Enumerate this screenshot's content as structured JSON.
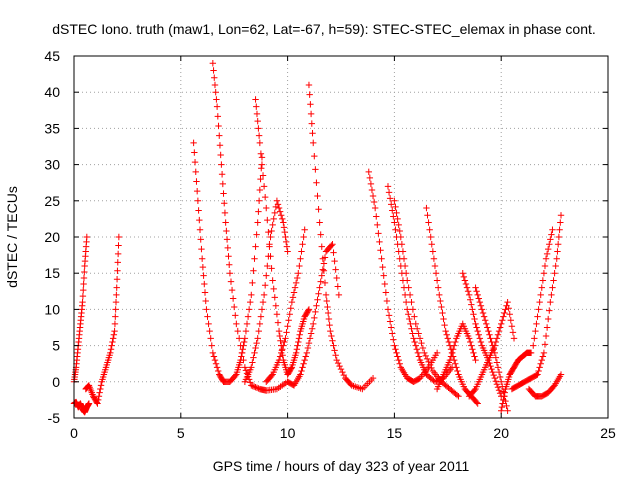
{
  "chart_data": {
    "type": "scatter",
    "title": "dSTEC Iono. truth (maw1, Lon=62, Lat=-67, h=59): STEC-STEC_elemax in phase cont.",
    "xlabel": "GPS time / hours of day 323 of year 2011",
    "ylabel": "dSTEC  / TECUs",
    "xlim": [
      0,
      25
    ],
    "ylim": [
      -5,
      45
    ],
    "xticks": [
      "0",
      "5",
      "10",
      "15",
      "20",
      "25"
    ],
    "yticks": [
      "-5",
      "0",
      "5",
      "10",
      "15",
      "20",
      "25",
      "30",
      "35",
      "40",
      "45"
    ],
    "grid": true,
    "legend": "none",
    "marker": "+",
    "color": "#ff0000",
    "series": [
      {
        "x": [
          0.0,
          0.1,
          0.2,
          0.3,
          0.4,
          0.5,
          0.6,
          0.7
        ],
        "y": [
          -3.0,
          -2.8,
          -3.5,
          -3.0,
          -3.8,
          -4.2,
          -3.5,
          -3.0
        ]
      },
      {
        "x": [
          0.0,
          0.1,
          0.2,
          0.3,
          0.4,
          0.5,
          0.6
        ],
        "y": [
          0.0,
          2.0,
          5.0,
          8.0,
          11.0,
          16.0,
          20.0
        ]
      },
      {
        "x": [
          0.55,
          0.7,
          0.9,
          1.1,
          1.3,
          1.5,
          1.7,
          1.9,
          2.0,
          2.1
        ],
        "y": [
          -1.0,
          -0.5,
          -2.0,
          -3.0,
          0.0,
          2.0,
          4.0,
          7.0,
          13.0,
          20.0
        ]
      },
      {
        "x": [
          5.6,
          5.8,
          6.0,
          6.2,
          6.5,
          6.8,
          7.0,
          7.3,
          7.6,
          7.8,
          8.0,
          8.3,
          8.6,
          8.8
        ],
        "y": [
          33.0,
          25.0,
          17.0,
          10.0,
          4.0,
          1.0,
          0.0,
          0.0,
          1.0,
          3.0,
          6.0,
          12.0,
          22.0,
          31.0
        ]
      },
      {
        "x": [
          6.5,
          6.7,
          6.9,
          7.1,
          7.3,
          7.6,
          8.0,
          8.3,
          8.7,
          9.0,
          9.5,
          10.0
        ],
        "y": [
          44.0,
          38.0,
          30.0,
          22.0,
          15.0,
          8.0,
          2.0,
          -0.5,
          -1.0,
          -1.2,
          -1.0,
          0.0
        ]
      },
      {
        "x": [
          8.5,
          8.7,
          9.0,
          9.3,
          9.6,
          9.8,
          10.0,
          10.2,
          10.4,
          10.6,
          10.8,
          11.0
        ],
        "y": [
          39.0,
          33.0,
          24.0,
          14.0,
          7.0,
          3.0,
          1.0,
          2.0,
          4.0,
          7.0,
          9.0,
          10.0
        ]
      },
      {
        "x": [
          8.0,
          8.3,
          8.6,
          8.9,
          9.2,
          9.5,
          9.8,
          10.0
        ],
        "y": [
          0.0,
          2.0,
          6.0,
          12.0,
          20.0,
          25.0,
          22.0,
          18.0
        ]
      },
      {
        "x": [
          9.0,
          9.3,
          9.6,
          9.9,
          10.2,
          10.5,
          10.8
        ],
        "y": [
          0.0,
          1.0,
          3.0,
          6.0,
          11.0,
          15.0,
          21.0
        ]
      },
      {
        "x": [
          11.0,
          11.2,
          11.5,
          11.8,
          12.0,
          12.3,
          12.7,
          13.0,
          13.5,
          14.0
        ],
        "y": [
          41.0,
          33.0,
          22.0,
          12.0,
          7.0,
          3.0,
          0.5,
          -0.5,
          -1.0,
          0.5
        ]
      },
      {
        "x": [
          10.0,
          10.3,
          10.6,
          10.9,
          11.2,
          11.5,
          11.8,
          12.1,
          12.4
        ],
        "y": [
          0.0,
          -0.5,
          1.0,
          4.0,
          8.0,
          13.0,
          18.0,
          19.0,
          12.0
        ]
      },
      {
        "x": [
          13.8,
          14.1,
          14.4,
          14.7,
          15.0,
          15.3,
          15.6,
          15.9,
          16.2,
          16.6,
          17.0
        ],
        "y": [
          29.0,
          24.0,
          17.0,
          10.0,
          5.0,
          2.0,
          0.5,
          0.0,
          0.5,
          2.0,
          4.0
        ]
      },
      {
        "x": [
          14.7,
          15.0,
          15.3,
          15.6,
          15.9,
          16.2,
          16.5,
          16.9,
          17.3,
          17.7
        ],
        "y": [
          27.0,
          22.0,
          16.0,
          10.0,
          6.0,
          3.0,
          1.0,
          0.0,
          0.5,
          2.0
        ]
      },
      {
        "x": [
          15.0,
          15.3,
          15.6,
          16.0,
          16.4,
          16.8,
          17.2,
          17.6,
          18.0
        ],
        "y": [
          25.0,
          20.0,
          14.0,
          8.0,
          4.0,
          1.5,
          0.0,
          -1.0,
          -2.0
        ]
      },
      {
        "x": [
          16.5,
          16.8,
          17.1,
          17.4,
          17.7,
          18.0,
          18.3,
          18.6,
          18.9
        ],
        "y": [
          24.0,
          18.0,
          12.0,
          7.0,
          4.0,
          1.0,
          -1.0,
          -2.0,
          -3.0
        ]
      },
      {
        "x": [
          18.2,
          18.5,
          18.8,
          19.1,
          19.4,
          19.7,
          20.0
        ],
        "y": [
          15.0,
          12.0,
          8.0,
          5.0,
          3.0,
          0.5,
          -2.0
        ]
      },
      {
        "x": [
          18.8,
          19.1,
          19.4,
          19.7,
          20.0,
          20.3
        ],
        "y": [
          13.0,
          10.0,
          7.0,
          4.0,
          0.0,
          -4.0
        ]
      },
      {
        "x": [
          17.0,
          17.3,
          17.6,
          17.9,
          18.2,
          18.5,
          18.8
        ],
        "y": [
          -1.0,
          1.0,
          3.0,
          6.0,
          8.0,
          6.0,
          3.0
        ]
      },
      {
        "x": [
          18.5,
          18.8,
          19.1,
          19.4,
          19.7,
          20.0,
          20.3,
          20.6
        ],
        "y": [
          -2.0,
          -1.0,
          1.0,
          3.0,
          5.0,
          8.0,
          11.0,
          6.0
        ]
      },
      {
        "x": [
          20.0,
          20.2,
          20.4,
          20.6,
          20.8,
          21.0,
          21.2,
          21.4
        ],
        "y": [
          -4.0,
          -1.0,
          1.0,
          2.0,
          3.0,
          3.5,
          4.0,
          4.0
        ]
      },
      {
        "x": [
          20.5,
          20.8,
          21.1,
          21.4,
          21.7,
          22.0,
          22.3,
          22.6,
          22.8
        ],
        "y": [
          -1.0,
          -0.5,
          0.0,
          0.5,
          1.0,
          4.0,
          11.0,
          17.0,
          23.0
        ]
      },
      {
        "x": [
          21.3,
          21.6,
          21.9,
          22.2,
          22.5,
          22.8
        ],
        "y": [
          -1.0,
          -2.0,
          -2.0,
          -1.5,
          -0.5,
          1.0
        ]
      },
      {
        "x": [
          21.5,
          21.8,
          22.1,
          22.4
        ],
        "y": [
          5.0,
          11.0,
          17.0,
          21.0
        ]
      }
    ]
  }
}
